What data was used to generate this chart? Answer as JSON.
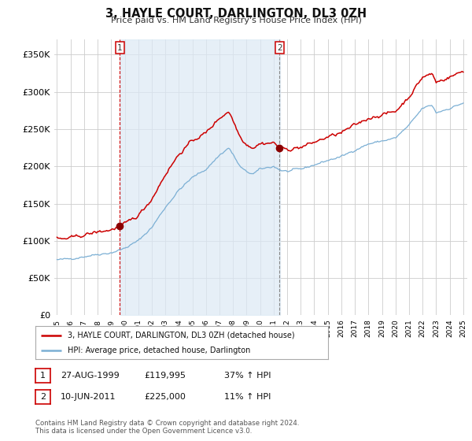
{
  "title": "3, HAYLE COURT, DARLINGTON, DL3 0ZH",
  "subtitle": "Price paid vs. HM Land Registry's House Price Index (HPI)",
  "legend_line1": "3, HAYLE COURT, DARLINGTON, DL3 0ZH (detached house)",
  "legend_line2": "HPI: Average price, detached house, Darlington",
  "footnote1": "Contains HM Land Registry data © Crown copyright and database right 2024.",
  "footnote2": "This data is licensed under the Open Government Licence v3.0.",
  "table_rows": [
    [
      "1",
      "27-AUG-1999",
      "£119,995",
      "37% ↑ HPI"
    ],
    [
      "2",
      "10-JUN-2011",
      "£225,000",
      "11% ↑ HPI"
    ]
  ],
  "hpi_color": "#7bafd4",
  "hpi_fill_color": "#dce9f5",
  "price_color": "#cc0000",
  "dot_color": "#8b0000",
  "marker_border_red": "#cc0000",
  "marker_border_gray": "#888888",
  "ylim": [
    0,
    370000
  ],
  "yticks": [
    0,
    50000,
    100000,
    150000,
    200000,
    250000,
    300000,
    350000
  ],
  "ytick_labels": [
    "£0",
    "£50K",
    "£100K",
    "£150K",
    "£200K",
    "£250K",
    "£300K",
    "£350K"
  ],
  "background_color": "#ffffff",
  "plot_bg_color": "#ffffff",
  "grid_color": "#cccccc",
  "purchase1_year": 1999.65,
  "purchase1_price": 119995,
  "purchase2_year": 2011.44,
  "purchase2_price": 225000,
  "xmin": 1994.8,
  "xmax": 2025.3
}
